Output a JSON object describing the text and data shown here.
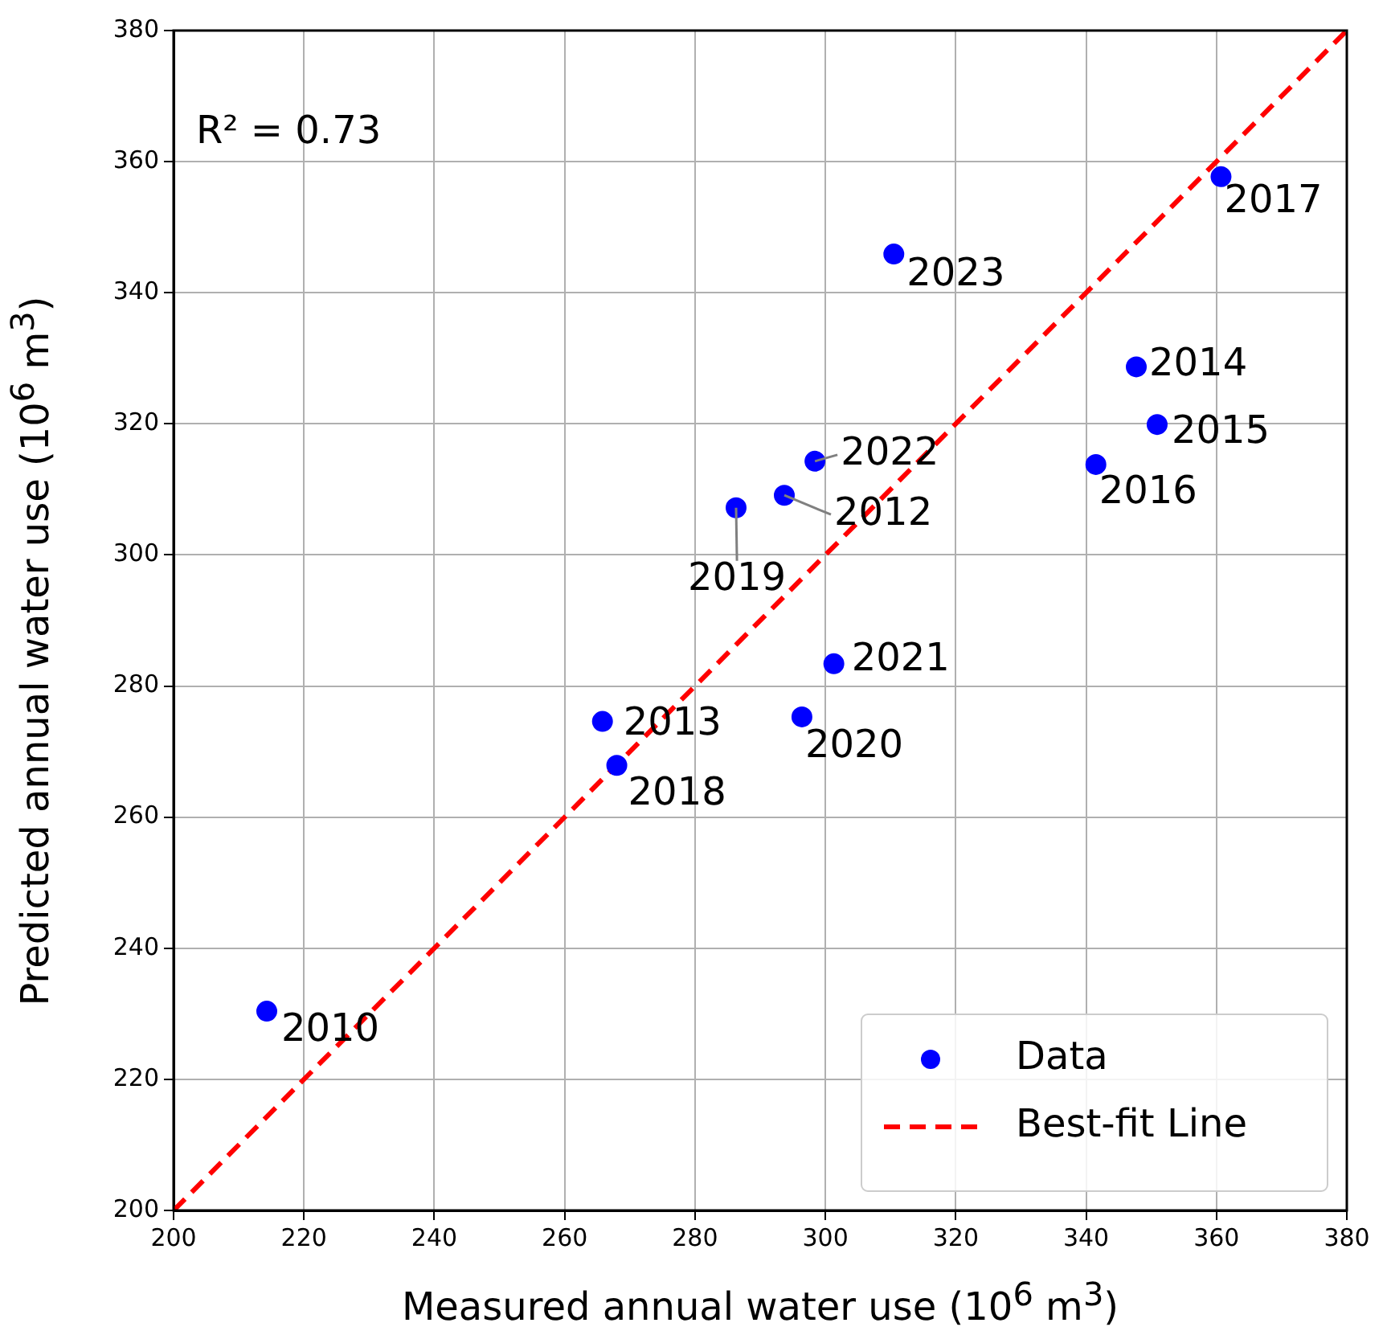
{
  "chart_data": {
    "type": "scatter",
    "xlabel": "Measured annual water use (10$^{6}$ m$^{3}$)",
    "ylabel": "Predicted annual water use (10$^{6}$ m$^{3}$)",
    "xlim": [
      200,
      380
    ],
    "xticks": [
      200,
      220,
      240,
      260,
      280,
      300,
      320,
      340,
      360,
      380
    ],
    "ylim": [
      200,
      380
    ],
    "yticks": [
      200,
      220,
      240,
      260,
      280,
      300,
      320,
      340,
      360,
      380
    ],
    "grid": true,
    "legend": "bottom right",
    "series": [
      {
        "name": "Data",
        "type": "scatter",
        "marker": "circle",
        "color": "#0000ff",
        "x": [
          214.3,
          293.7,
          265.8,
          347.7,
          350.9,
          341.5,
          360.7,
          268.0,
          286.3,
          296.4,
          301.3,
          298.4,
          310.5
        ],
        "values": [
          230.4,
          309.1,
          274.6,
          328.7,
          319.9,
          313.8,
          357.7,
          267.9,
          307.2,
          275.3,
          283.4,
          314.3,
          345.9
        ]
      },
      {
        "name": "Best-fit Line",
        "type": "line",
        "color": "#ff0000",
        "line_style": "dashed",
        "marker": "none",
        "x": [
          200,
          380
        ],
        "values": [
          200,
          380
        ]
      }
    ],
    "annotations": [
      "R² = 0.73",
      {
        "text": "2010",
        "x": 214.3,
        "y": 230.4
      },
      {
        "text": "2012",
        "x": 293.7,
        "y": 309.1
      },
      {
        "text": "2013",
        "x": 265.8,
        "y": 274.6
      },
      {
        "text": "2014",
        "x": 347.7,
        "y": 328.7
      },
      {
        "text": "2015",
        "x": 350.9,
        "y": 319.9
      },
      {
        "text": "2016",
        "x": 341.5,
        "y": 313.8
      },
      {
        "text": "2017",
        "x": 360.7,
        "y": 357.7
      },
      {
        "text": "2018",
        "x": 268.0,
        "y": 267.9
      },
      {
        "text": "2019",
        "x": 286.3,
        "y": 307.2
      },
      {
        "text": "2020",
        "x": 296.4,
        "y": 275.3
      },
      {
        "text": "2021",
        "x": 301.3,
        "y": 283.4
      },
      {
        "text": "2022",
        "x": 298.4,
        "y": 314.3
      },
      {
        "text": "2023",
        "x": 310.5,
        "y": 345.9
      }
    ]
  }
}
